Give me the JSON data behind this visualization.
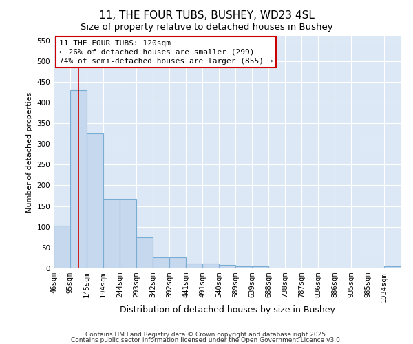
{
  "title": "11, THE FOUR TUBS, BUSHEY, WD23 4SL",
  "subtitle": "Size of property relative to detached houses in Bushey",
  "xlabel": "Distribution of detached houses by size in Bushey",
  "ylabel": "Number of detached properties",
  "bin_labels": [
    "46sqm",
    "95sqm",
    "145sqm",
    "194sqm",
    "244sqm",
    "293sqm",
    "342sqm",
    "392sqm",
    "441sqm",
    "491sqm",
    "540sqm",
    "589sqm",
    "639sqm",
    "688sqm",
    "738sqm",
    "787sqm",
    "836sqm",
    "886sqm",
    "935sqm",
    "985sqm",
    "1034sqm"
  ],
  "bin_edges": [
    46,
    95,
    145,
    194,
    244,
    293,
    342,
    392,
    441,
    491,
    540,
    589,
    639,
    688,
    738,
    787,
    836,
    886,
    935,
    985,
    1034
  ],
  "bar_heights": [
    103,
    430,
    325,
    168,
    168,
    74,
    27,
    27,
    12,
    12,
    8,
    5,
    5,
    0,
    0,
    0,
    0,
    0,
    0,
    0,
    5
  ],
  "bar_color": "#c5d8ee",
  "bar_edgecolor": "#7aadd4",
  "bar_linewidth": 0.8,
  "ref_line_x": 120,
  "ref_line_color": "#cc0000",
  "annotation_line1": "11 THE FOUR TUBS: 120sqm",
  "annotation_line2": "← 26% of detached houses are smaller (299)",
  "annotation_line3": "74% of semi-detached houses are larger (855) →",
  "annotation_box_facecolor": "#ffffff",
  "annotation_box_edgecolor": "#cc0000",
  "ylim": [
    0,
    560
  ],
  "yticks": [
    0,
    50,
    100,
    150,
    200,
    250,
    300,
    350,
    400,
    450,
    500,
    550
  ],
  "background_color": "#dce8f5",
  "footer_line1": "Contains HM Land Registry data © Crown copyright and database right 2025.",
  "footer_line2": "Contains public sector information licensed under the Open Government Licence v3.0.",
  "title_fontsize": 11,
  "subtitle_fontsize": 9.5,
  "xlabel_fontsize": 9,
  "ylabel_fontsize": 8,
  "tick_fontsize": 7.5,
  "annotation_fontsize": 8,
  "footer_fontsize": 6.5
}
